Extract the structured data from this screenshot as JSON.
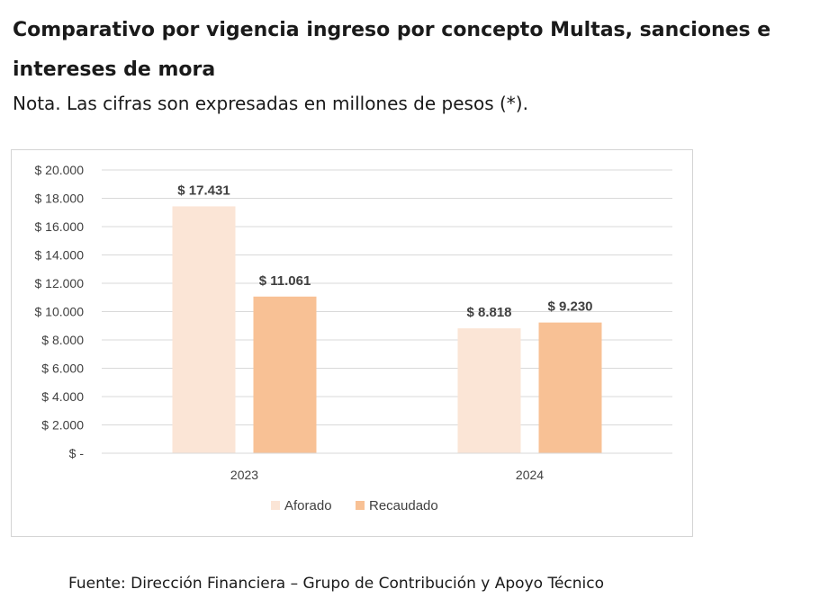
{
  "title": "Comparativo por vigencia ingreso por concepto Multas, sanciones e intereses de mora",
  "note": "Nota. Las cifras son expresadas en millones de pesos (*).",
  "source": "Fuente: Dirección Financiera – Grupo de Contribución y Apoyo Técnico",
  "chart_data": {
    "type": "bar",
    "categories": [
      "2023",
      "2024"
    ],
    "series": [
      {
        "name": "Aforado",
        "values": [
          17431,
          8818
        ],
        "labels": [
          "$ 17.431",
          "$ 8.818"
        ],
        "color": "#fbe5d6"
      },
      {
        "name": "Recaudado",
        "values": [
          11061,
          9230
        ],
        "labels": [
          "$ 11.061",
          "$ 9.230"
        ],
        "color": "#f8c195"
      }
    ],
    "ylim": [
      0,
      20000
    ],
    "yticks": [
      0,
      2000,
      4000,
      6000,
      8000,
      10000,
      12000,
      14000,
      16000,
      18000,
      20000
    ],
    "ytick_labels": [
      "$ -",
      "$ 2.000",
      "$ 4.000",
      "$ 6.000",
      "$ 8.000",
      "$ 10.000",
      "$ 12.000",
      "$ 14.000",
      "$ 16.000",
      "$ 18.000",
      "$ 20.000"
    ],
    "grid": true,
    "gridline_color": "#d9d9d9",
    "legend": "bottom-center"
  }
}
